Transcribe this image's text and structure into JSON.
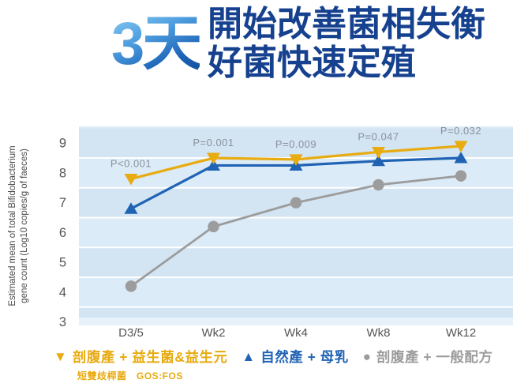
{
  "header": {
    "badge": "3天",
    "title_line1": "開始改善菌相失衡",
    "title_line2": "好菌快速定殖"
  },
  "chart_data": {
    "type": "line",
    "title": "",
    "categories": [
      "D3/5",
      "Wk2",
      "Wk4",
      "Wk8",
      "Wk12"
    ],
    "series": [
      {
        "name": "剖腹產 + 益生菌&益生元",
        "sub": "短雙歧桿菌　GOS:FOS",
        "marker": "triangle-down",
        "color": "#E8AB10",
        "values": [
          7.8,
          8.5,
          8.45,
          8.7,
          8.9
        ]
      },
      {
        "name": "自然產 + 母乳",
        "sub": "",
        "marker": "triangle-up",
        "color": "#2063B4",
        "values": [
          6.8,
          8.25,
          8.25,
          8.4,
          8.5
        ]
      },
      {
        "name": "剖腹產 + 一般配方",
        "sub": "",
        "marker": "circle",
        "color": "#9C9C9C",
        "values": [
          4.2,
          6.2,
          7.0,
          7.6,
          7.9
        ]
      }
    ],
    "annotations": [
      {
        "label": "P<0.001",
        "x_index": 0
      },
      {
        "label": "P=0.001",
        "x_index": 1
      },
      {
        "label": "P=0.009",
        "x_index": 2
      },
      {
        "label": "P=0.047",
        "x_index": 3
      },
      {
        "label": "P=0.032",
        "x_index": 4
      }
    ],
    "ylabel_line1": "Estimated mean of total Bifidobacterium",
    "ylabel_line2": "gene count (Log10 copies/g of faeces)",
    "yticks": [
      9,
      8,
      7,
      6,
      5,
      4,
      3
    ],
    "ylim": [
      2.9,
      9.6
    ],
    "grid_values": [
      8.5,
      7.5,
      6.5,
      5.5,
      4.5,
      3.5
    ],
    "legend_position": "bottom",
    "grid": "horizontal white lines on banded light-blue background"
  },
  "colors": {
    "title_blue": "#16418f",
    "band_dark": "#d3e4f3",
    "band_light": "#dcebf8",
    "band_footer": "#e6f1fa",
    "gridline": "#ffffff",
    "tick_text": "#555555",
    "pvalue_text": "#8b929b",
    "axis_label_text": "#4a4a4a"
  }
}
